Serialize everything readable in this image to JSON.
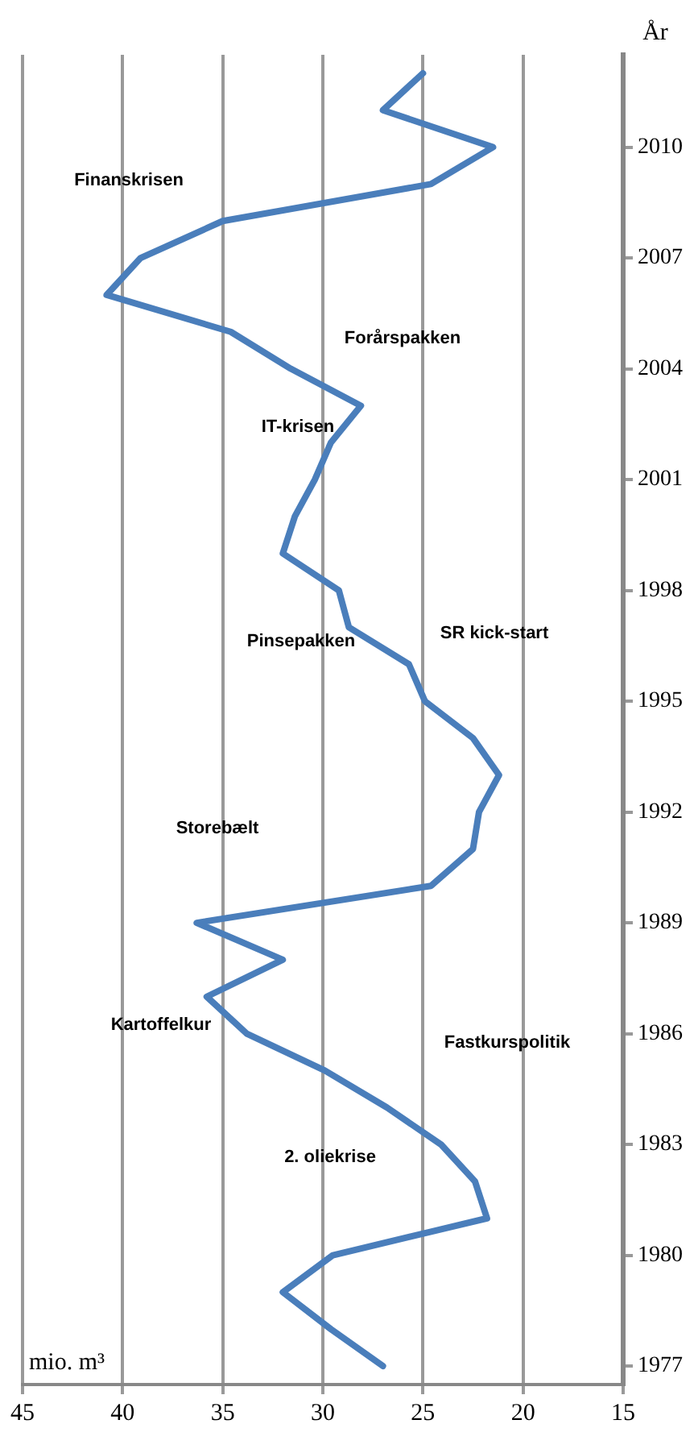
{
  "chart_data": {
    "type": "line",
    "xlabel": "mio. m³",
    "ylabel": "År",
    "series": [
      {
        "color": "#4a7ebb",
        "x": [
          27.0,
          29.6,
          32.0,
          29.5,
          21.8,
          22.4,
          24.1,
          26.8,
          29.9,
          33.8,
          35.8,
          32.0,
          36.3,
          24.6,
          22.5,
          22.2,
          21.2,
          22.5,
          24.9,
          25.7,
          28.7,
          29.2,
          32.0,
          31.4,
          30.4,
          29.6,
          28.1,
          31.6,
          34.6,
          40.8,
          39.1,
          35.0,
          24.6,
          21.5,
          27.0,
          25.0
        ],
        "values": [
          1977,
          1978,
          1979,
          1980,
          1981,
          1982,
          1983,
          1984,
          1985,
          1986,
          1987,
          1988,
          1989,
          1990,
          1991,
          1992,
          1993,
          1994,
          1995,
          1996,
          1997,
          1998,
          1999,
          2000,
          2001,
          2002,
          2003,
          2004,
          2005,
          2006,
          2007,
          2008,
          2009,
          2010,
          2011,
          2012
        ]
      }
    ],
    "xlim": [
      45,
      15
    ],
    "xticks": [
      45,
      40,
      35,
      30,
      25,
      20,
      15
    ],
    "ylim": [
      1976.5,
      2012.5
    ],
    "yticks": [
      1977,
      1980,
      1983,
      1986,
      1989,
      1992,
      1995,
      1998,
      2001,
      2004,
      2007,
      2010
    ],
    "grid": "x",
    "legend": false,
    "marker": "none",
    "line_style": "solid",
    "annotations": [
      "Finanskrisen",
      "Forårspakken",
      "IT-krisen",
      "Pinsepakken",
      "SR kick-start",
      "Storebælt",
      "Kartoffelkur",
      "2. oliekrise",
      "Fastkurspolitik"
    ]
  }
}
